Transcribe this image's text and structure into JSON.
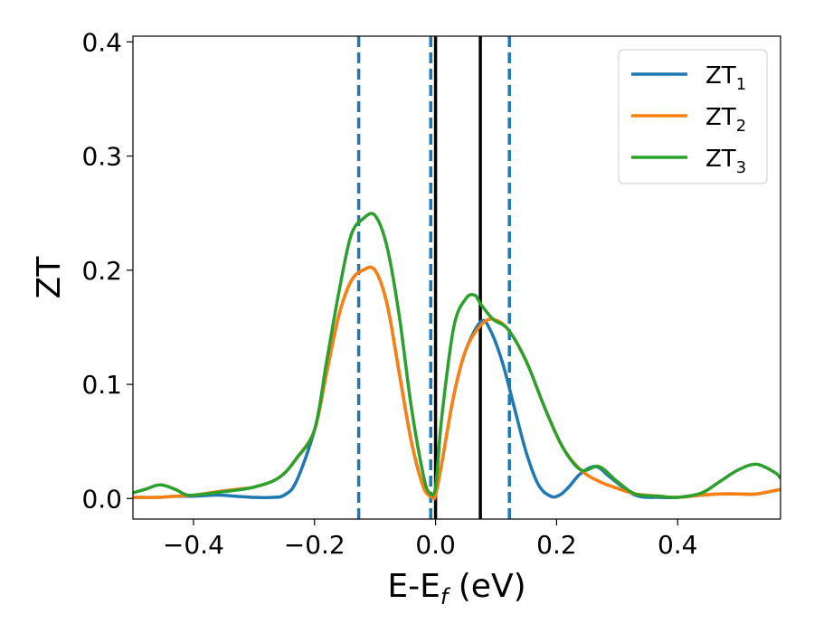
{
  "chart_data": {
    "type": "line",
    "xlabel": "E-E",
    "xlabel_sub": "f",
    "xlabel_unit": " (eV)",
    "ylabel": "ZT",
    "xlim": [
      -0.5,
      0.57
    ],
    "ylim": [
      -0.018,
      0.405
    ],
    "x_ticks": [
      -0.4,
      -0.2,
      0.0,
      0.2,
      0.4
    ],
    "x_tick_labels": [
      "−0.4",
      "−0.2",
      "0.0",
      "0.2",
      "0.4"
    ],
    "y_ticks": [
      0.0,
      0.1,
      0.2,
      0.3,
      0.4
    ],
    "y_tick_labels": [
      "0.0",
      "0.1",
      "0.2",
      "0.3",
      "0.4"
    ],
    "grid": false,
    "legend_position": "top-right",
    "series": [
      {
        "name": "ZT",
        "name_sub": "1",
        "color": "#1f77b4",
        "x": [
          -0.5,
          -0.46,
          -0.43,
          -0.4,
          -0.36,
          -0.33,
          -0.3,
          -0.27,
          -0.25,
          -0.23,
          -0.2,
          -0.18,
          -0.16,
          -0.14,
          -0.12,
          -0.1,
          -0.08,
          -0.06,
          -0.04,
          -0.02,
          -0.005,
          0.0,
          0.01,
          0.03,
          0.05,
          0.075,
          0.09,
          0.11,
          0.13,
          0.15,
          0.17,
          0.19,
          0.205,
          0.22,
          0.24,
          0.265,
          0.29,
          0.33,
          0.37,
          0.4,
          0.44,
          0.47,
          0.5,
          0.53,
          0.57
        ],
        "y": [
          0.001,
          0.001,
          0.002,
          0.002,
          0.003,
          0.002,
          0.001,
          0.001,
          0.003,
          0.015,
          0.06,
          0.11,
          0.16,
          0.19,
          0.2,
          0.2,
          0.17,
          0.11,
          0.05,
          0.01,
          0.001,
          0.003,
          0.03,
          0.09,
          0.13,
          0.155,
          0.148,
          0.12,
          0.08,
          0.04,
          0.012,
          0.002,
          0.003,
          0.01,
          0.022,
          0.028,
          0.018,
          0.003,
          0.001,
          0.001,
          0.003,
          0.004,
          0.004,
          0.004,
          0.008
        ]
      },
      {
        "name": "ZT",
        "name_sub": "2",
        "color": "#ff7f0e",
        "x": [
          -0.5,
          -0.46,
          -0.43,
          -0.4,
          -0.36,
          -0.33,
          -0.3,
          -0.27,
          -0.25,
          -0.23,
          -0.2,
          -0.18,
          -0.16,
          -0.14,
          -0.12,
          -0.1,
          -0.08,
          -0.06,
          -0.04,
          -0.02,
          -0.005,
          0.0,
          0.01,
          0.03,
          0.05,
          0.075,
          0.095,
          0.12,
          0.15,
          0.18,
          0.21,
          0.24,
          0.27,
          0.3,
          0.33,
          0.37,
          0.4,
          0.44,
          0.47,
          0.5,
          0.53,
          0.57
        ],
        "y": [
          0.001,
          0.001,
          0.002,
          0.003,
          0.006,
          0.008,
          0.01,
          0.015,
          0.022,
          0.035,
          0.06,
          0.11,
          0.16,
          0.19,
          0.2,
          0.2,
          0.17,
          0.11,
          0.05,
          0.01,
          0.001,
          0.003,
          0.03,
          0.09,
          0.13,
          0.152,
          0.157,
          0.148,
          0.12,
          0.08,
          0.045,
          0.025,
          0.015,
          0.009,
          0.004,
          0.002,
          0.001,
          0.003,
          0.004,
          0.004,
          0.004,
          0.008
        ]
      },
      {
        "name": "ZT",
        "name_sub": "3",
        "color": "#2ca02c",
        "x": [
          -0.5,
          -0.48,
          -0.455,
          -0.43,
          -0.41,
          -0.38,
          -0.35,
          -0.32,
          -0.3,
          -0.27,
          -0.25,
          -0.23,
          -0.2,
          -0.18,
          -0.16,
          -0.14,
          -0.12,
          -0.1,
          -0.08,
          -0.06,
          -0.04,
          -0.02,
          -0.01,
          0.0,
          0.01,
          0.03,
          0.05,
          0.065,
          0.075,
          0.095,
          0.12,
          0.15,
          0.18,
          0.21,
          0.24,
          0.27,
          0.3,
          0.33,
          0.37,
          0.4,
          0.44,
          0.47,
          0.5,
          0.53,
          0.56,
          0.57
        ],
        "y": [
          0.005,
          0.008,
          0.012,
          0.008,
          0.003,
          0.004,
          0.006,
          0.008,
          0.01,
          0.015,
          0.022,
          0.035,
          0.06,
          0.12,
          0.18,
          0.23,
          0.245,
          0.248,
          0.22,
          0.16,
          0.08,
          0.02,
          0.005,
          0.01,
          0.07,
          0.15,
          0.175,
          0.178,
          0.17,
          0.157,
          0.148,
          0.12,
          0.08,
          0.045,
          0.025,
          0.028,
          0.015,
          0.004,
          0.002,
          0.001,
          0.005,
          0.015,
          0.025,
          0.03,
          0.023,
          0.018
        ]
      }
    ],
    "vlines": [
      {
        "x": -0.127,
        "color": "#1f77b4",
        "style": "dashed"
      },
      {
        "x": -0.008,
        "color": "#1f77b4",
        "style": "dashed"
      },
      {
        "x": 0.122,
        "color": "#1f77b4",
        "style": "dashed"
      },
      {
        "x": 0.0,
        "color": "#000000",
        "style": "solid"
      },
      {
        "x": 0.074,
        "color": "#000000",
        "style": "solid"
      }
    ]
  }
}
